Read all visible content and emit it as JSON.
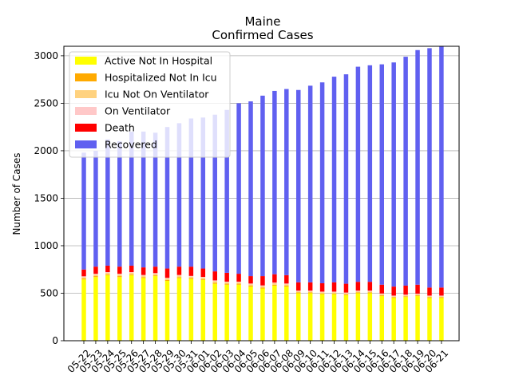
{
  "chart_data": {
    "type": "bar",
    "stacked": true,
    "title_line1": "Maine",
    "title_line2": "Confirmed Cases",
    "xlabel": "",
    "ylabel": "Number of Cases",
    "ylim": [
      0,
      3100
    ],
    "yticks": [
      0,
      500,
      1000,
      1500,
      2000,
      2500,
      3000
    ],
    "grid": "horizontal",
    "legend_position": "top-left",
    "categories": [
      "05-22",
      "05-23",
      "05-24",
      "05-25",
      "05-26",
      "05-27",
      "05-28",
      "05-29",
      "05-30",
      "05-31",
      "06-01",
      "06-02",
      "06-03",
      "06-04",
      "06-05",
      "06-06",
      "06-07",
      "06-08",
      "06-09",
      "06-10",
      "06-11",
      "06-12",
      "06-13",
      "06-14",
      "06-15",
      "06-16",
      "06-17",
      "06-18",
      "06-19",
      "06-20",
      "06-21"
    ],
    "series": [
      {
        "name": "Active Not In Hospital",
        "color": "#ffff00",
        "values": [
          645,
          670,
          690,
          670,
          690,
          660,
          680,
          630,
          660,
          650,
          640,
          600,
          590,
          590,
          570,
          550,
          580,
          570,
          500,
          500,
          490,
          490,
          480,
          500,
          500,
          470,
          450,
          460,
          470,
          450,
          450
        ]
      },
      {
        "name": "Hospitalized Not In Icu",
        "color": "#ffaa00",
        "values": [
          10,
          10,
          8,
          10,
          8,
          10,
          8,
          10,
          8,
          10,
          8,
          10,
          10,
          10,
          10,
          10,
          10,
          10,
          8,
          8,
          8,
          8,
          8,
          8,
          8,
          8,
          8,
          8,
          8,
          8,
          8
        ]
      },
      {
        "name": "Icu Not On Ventilator",
        "color": "#ffd27f",
        "values": [
          15,
          18,
          17,
          18,
          17,
          15,
          17,
          15,
          17,
          15,
          17,
          18,
          15,
          15,
          15,
          15,
          15,
          15,
          12,
          12,
          12,
          12,
          12,
          12,
          12,
          12,
          10,
          10,
          10,
          10,
          10
        ]
      },
      {
        "name": "On Ventilator",
        "color": "#ffc8c8",
        "values": [
          8,
          7,
          7,
          7,
          7,
          7,
          7,
          7,
          7,
          7,
          7,
          7,
          7,
          7,
          7,
          7,
          7,
          7,
          7,
          7,
          7,
          7,
          7,
          7,
          7,
          7,
          7,
          7,
          7,
          7,
          7
        ]
      },
      {
        "name": "Death",
        "color": "#ff0000",
        "values": [
          72,
          75,
          68,
          75,
          68,
          80,
          68,
          98,
          88,
          98,
          88,
          95,
          93,
          83,
          78,
          98,
          88,
          88,
          88,
          88,
          88,
          98,
          93,
          93,
          93,
          93,
          95,
          95,
          95,
          85,
          85
        ]
      },
      {
        "name": "Recovered",
        "color": "#6060f0",
        "values": [
          1230,
          1220,
          1330,
          1320,
          1410,
          1430,
          1410,
          1490,
          1510,
          1560,
          1590,
          1650,
          1715,
          1795,
          1840,
          1900,
          1930,
          1960,
          2025,
          2070,
          2115,
          2165,
          2205,
          2265,
          2280,
          2320,
          2360,
          2410,
          2470,
          2520,
          2540
        ]
      }
    ]
  }
}
